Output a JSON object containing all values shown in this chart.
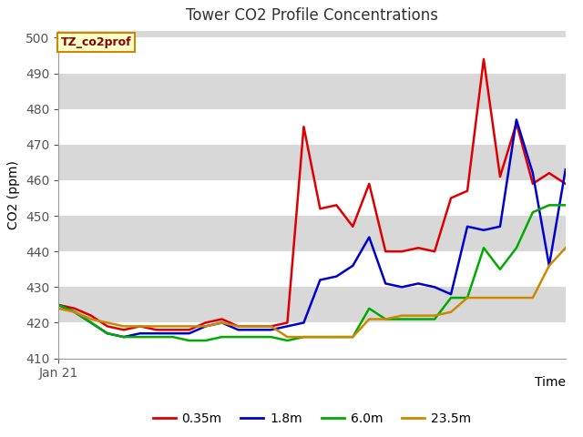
{
  "title": "Tower CO2 Profile Concentrations",
  "xlabel": "Time",
  "ylabel": "CO2 (ppm)",
  "ylim": [
    410,
    502
  ],
  "yticks": [
    410,
    420,
    430,
    440,
    450,
    460,
    470,
    480,
    490,
    500
  ],
  "x_label_start": "Jan 21",
  "annotation_label": "TZ_co2prof",
  "fig_bg_color": "#ffffff",
  "plot_bg_color": "#d8d8d8",
  "grid_color": "#ffffff",
  "series": {
    "0.35m": {
      "color": "#dd0000",
      "linewidth": 1.8,
      "values": [
        425,
        424,
        422,
        419,
        418,
        419,
        418,
        418,
        418,
        420,
        421,
        419,
        419,
        419,
        420,
        475,
        452,
        453,
        447,
        459,
        440,
        440,
        441,
        440,
        455,
        457,
        494,
        461,
        476,
        459,
        462,
        459
      ]
    },
    "1.8m": {
      "color": "#0000cc",
      "linewidth": 1.8,
      "values": [
        425,
        423,
        420,
        417,
        416,
        417,
        417,
        417,
        417,
        419,
        420,
        418,
        418,
        418,
        419,
        420,
        432,
        433,
        436,
        444,
        431,
        430,
        431,
        430,
        428,
        447,
        446,
        447,
        477,
        462,
        436,
        463
      ]
    },
    "6.0m": {
      "color": "#00aa00",
      "linewidth": 1.8,
      "values": [
        425,
        423,
        420,
        417,
        416,
        416,
        416,
        416,
        415,
        415,
        416,
        416,
        416,
        416,
        415,
        416,
        416,
        416,
        416,
        424,
        421,
        421,
        421,
        421,
        427,
        427,
        441,
        435,
        441,
        451,
        453,
        453
      ]
    },
    "23.5m": {
      "color": "#cc8800",
      "linewidth": 1.8,
      "values": [
        424,
        423,
        421,
        420,
        419,
        419,
        419,
        419,
        419,
        419,
        420,
        419,
        419,
        419,
        416,
        416,
        416,
        416,
        416,
        421,
        421,
        422,
        422,
        422,
        423,
        427,
        427,
        427,
        427,
        427,
        436,
        441
      ]
    }
  },
  "legend_entries": [
    "0.35m",
    "1.8m",
    "6.0m",
    "23.5m"
  ],
  "legend_colors": [
    "#dd0000",
    "#0000cc",
    "#00aa00",
    "#cc8800"
  ]
}
